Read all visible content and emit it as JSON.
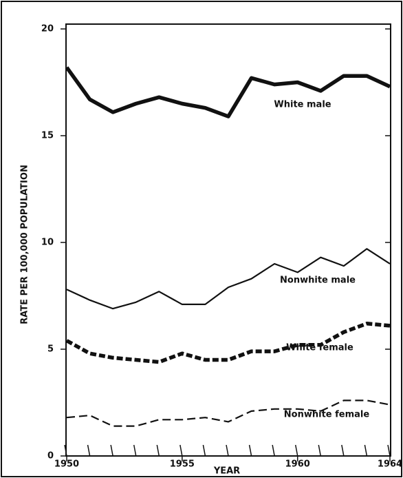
{
  "chart_data": {
    "type": "line",
    "x": [
      1950,
      1951,
      1952,
      1953,
      1954,
      1955,
      1956,
      1957,
      1958,
      1959,
      1960,
      1961,
      1962,
      1963,
      1964
    ],
    "series": [
      {
        "name": "White male",
        "color": "#111111",
        "line_style": "solid",
        "line_weight": "heavy",
        "values": [
          18.2,
          16.7,
          16.1,
          16.5,
          16.8,
          16.5,
          16.3,
          15.9,
          17.7,
          17.4,
          17.5,
          17.1,
          17.8,
          17.8,
          17.3
        ]
      },
      {
        "name": "Nonwhite male",
        "color": "#111111",
        "line_style": "solid",
        "line_weight": "light",
        "values": [
          7.8,
          7.3,
          6.9,
          7.2,
          7.7,
          7.1,
          7.1,
          7.9,
          8.3,
          9.0,
          8.6,
          9.3,
          8.9,
          9.7,
          9.0
        ]
      },
      {
        "name": "White female",
        "color": "#111111",
        "line_style": "dashed",
        "line_weight": "heavy",
        "values": [
          5.4,
          4.8,
          4.6,
          4.5,
          4.4,
          4.8,
          4.5,
          4.5,
          4.9,
          4.9,
          5.2,
          5.2,
          5.8,
          6.2,
          6.1
        ]
      },
      {
        "name": "Nonwhite female",
        "color": "#111111",
        "line_style": "dashed",
        "line_weight": "light",
        "values": [
          1.8,
          1.9,
          1.4,
          1.4,
          1.7,
          1.7,
          1.8,
          1.6,
          2.1,
          2.2,
          2.2,
          2.1,
          2.6,
          2.6,
          2.4
        ]
      }
    ],
    "x_label": "YEAR",
    "y_label": "RATE PER 100,000 POPULATION",
    "xlim": [
      1950,
      1964
    ],
    "xticks": [
      1950,
      1955,
      1960,
      1964
    ],
    "ylim": [
      0,
      20
    ],
    "yticks": [
      0,
      5,
      10,
      15,
      20
    ]
  }
}
